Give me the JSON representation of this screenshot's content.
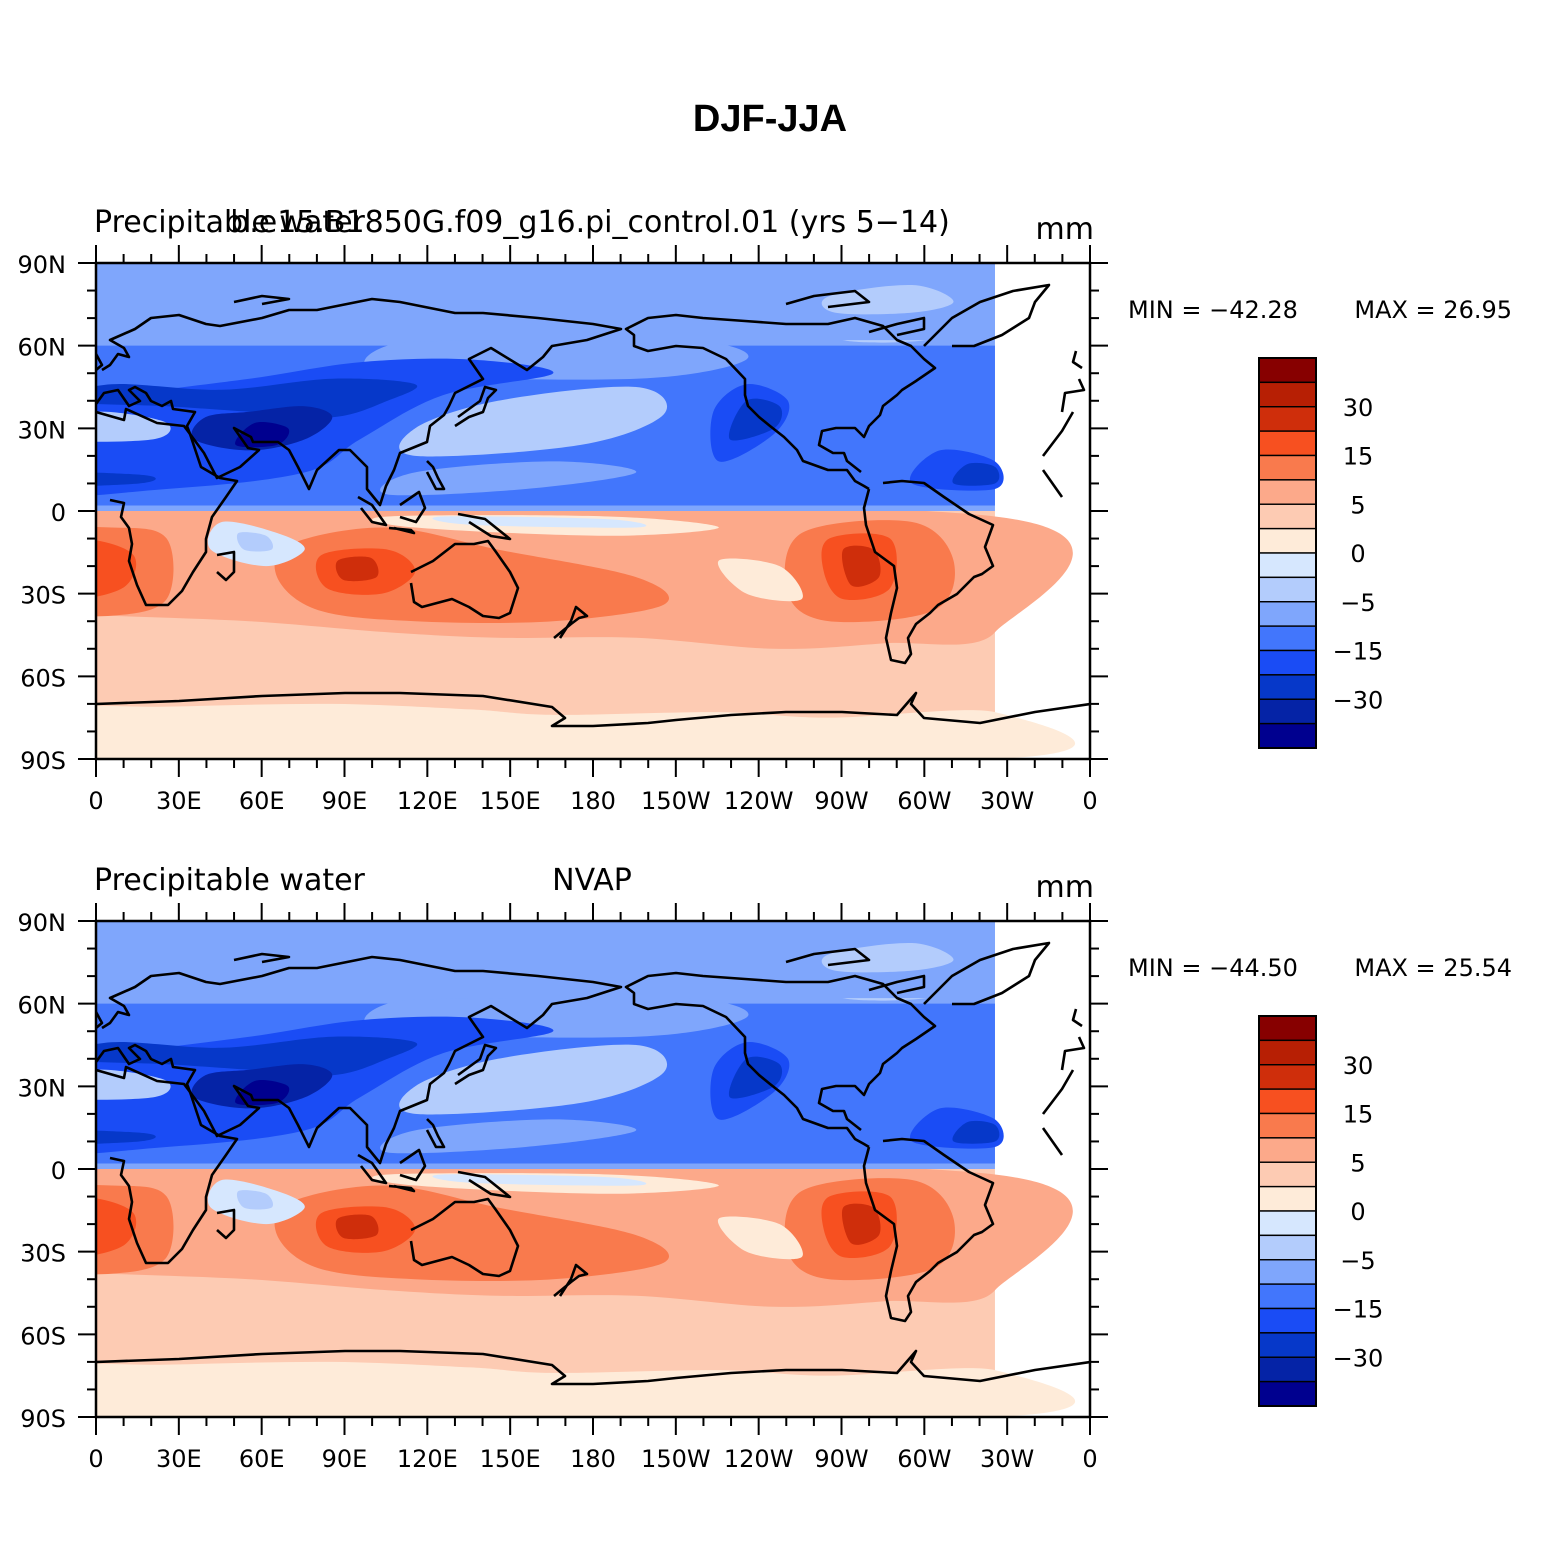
{
  "figure": {
    "title": "DJF-JJA"
  },
  "colors": {
    "contours": [
      "#00008f",
      "#0523a6",
      "#0638c9",
      "#1a4cf5",
      "#4276fc",
      "#7fa6fc",
      "#b3ccfc",
      "#d6e7fe",
      "#feebd9",
      "#fdcbb3",
      "#fca98a",
      "#f97a4d",
      "#f75020",
      "#cf2e0b",
      "#b71f04",
      "#870000"
    ],
    "coast": "#000000"
  },
  "colorbar": {
    "labels": [
      "30",
      "15",
      "5",
      "0",
      "−5",
      "−15",
      "−30"
    ]
  },
  "axes": {
    "lat_labels": [
      "90N",
      "60N",
      "30N",
      "0",
      "30S",
      "60S",
      "90S"
    ],
    "lon_labels": [
      "0",
      "30E",
      "60E",
      "90E",
      "120E",
      "150E",
      "180",
      "150W",
      "120W",
      "90W",
      "60W",
      "30W",
      "0"
    ]
  },
  "chart_data": [
    {
      "type": "heatmap",
      "left_title": "Precipitable water",
      "center_title": "b.e15.B1850G.f09_g16.pi_control.01 (yrs 5−14)",
      "units": "mm",
      "variable": "Precipitable water",
      "min_label": "MIN = −42.28",
      "max_label": "MAX =   26.95",
      "min": -42.28,
      "max": 26.95,
      "lon_range": [
        0,
        360
      ],
      "lat_range": [
        -90,
        90
      ],
      "contour_levels": [
        -40,
        -35,
        -30,
        -25,
        -20,
        -15,
        -10,
        -5,
        0,
        5,
        10,
        15,
        20,
        25,
        30
      ]
    },
    {
      "type": "heatmap",
      "left_title": "Precipitable water",
      "center_title": "NVAP",
      "units": "mm",
      "variable": "Precipitable water",
      "min_label": "MIN = −44.50",
      "max_label": "MAX =   25.54",
      "min": -44.5,
      "max": 25.54,
      "lon_range": [
        0,
        360
      ],
      "lat_range": [
        -90,
        90
      ],
      "contour_levels": [
        -40,
        -35,
        -30,
        -25,
        -20,
        -15,
        -10,
        -5,
        0,
        5,
        10,
        15,
        20,
        25,
        30
      ]
    }
  ]
}
